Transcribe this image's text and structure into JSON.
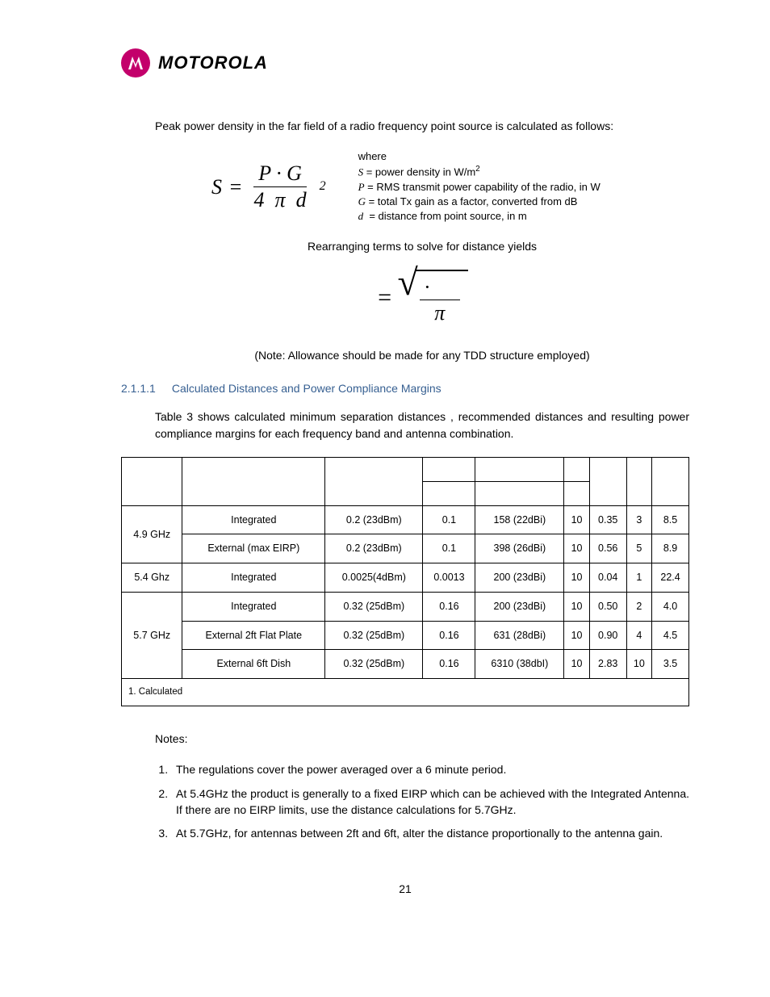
{
  "brand": "MOTOROLA",
  "intro": "Peak power density in the far field of a radio frequency point source is calculated as follows:",
  "formula1": {
    "lhs": "S",
    "num": "P · G",
    "den_lead": "4",
    "den_pi": "π",
    "den_d": "d",
    "exp": "2"
  },
  "where": {
    "title": "where",
    "s": "= power density in W/m",
    "p": "= RMS transmit power capability of the radio, in W",
    "g": "= total Tx gain as a factor, converted from dB",
    "d": "= distance from point source, in m"
  },
  "rearr": "Rearranging terms to solve for distance yields",
  "formula2": {
    "eq": "=",
    "dot": "·",
    "pi": "π"
  },
  "tdd_note": "(Note: Allowance should be made for any TDD structure employed)",
  "section": {
    "num": "2.1.1.1",
    "title": "Calculated Distances and Power Compliance Margins"
  },
  "table_intro": "Table 3 shows calculated minimum separation distances , recommended distances and resulting power compliance margins for each frequency band and antenna combination.",
  "table": {
    "rows": [
      {
        "band": "4.9 GHz",
        "span": 2,
        "ant": "Integrated",
        "p": "0.2 (23dBm)",
        "c3": "0.1",
        "g": "158 (22dBi)",
        "s": "10",
        "d": "0.35",
        "r": "3",
        "m": "8.5"
      },
      {
        "ant": "External (max EIRP)",
        "p": "0.2 (23dBm)",
        "c3": "0.1",
        "g": "398 (26dBi)",
        "s": "10",
        "d": "0.56",
        "r": "5",
        "m": "8.9"
      },
      {
        "band": "5.4 Ghz",
        "span": 1,
        "ant": "Integrated",
        "p": "0.0025(4dBm)",
        "c3": "0.0013",
        "g": "200 (23dBi)",
        "s": "10",
        "d": "0.04",
        "r": "1",
        "m": "22.4"
      },
      {
        "band": "5.7 GHz",
        "span": 3,
        "ant": "Integrated",
        "p": "0.32 (25dBm)",
        "c3": "0.16",
        "g": "200 (23dBi)",
        "s": "10",
        "d": "0.50",
        "r": "2",
        "m": "4.0"
      },
      {
        "ant": "External 2ft Flat Plate",
        "p": "0.32 (25dBm)",
        "c3": "0.16",
        "g": "631 (28dBi)",
        "s": "10",
        "d": "0.90",
        "r": "4",
        "m": "4.5"
      },
      {
        "ant": "External 6ft Dish",
        "p": "0.32 (25dBm)",
        "c3": "0.16",
        "g": "6310 (38dbI)",
        "s": "10",
        "d": "2.83",
        "r": "10",
        "m": "3.5"
      }
    ],
    "footnote": "1. Calculated"
  },
  "notes_heading": "Notes:",
  "notes": [
    "The regulations cover the power averaged over a 6 minute period.",
    "At 5.4GHz the product is generally to a fixed EIRP which can be achieved with the Integrated Antenna. If there are no EIRP limits, use the distance calculations for 5.7GHz.",
    "At 5.7GHz, for antennas between 2ft and 6ft, alter the distance proportionally to the antenna gain."
  ],
  "page_number": "21"
}
